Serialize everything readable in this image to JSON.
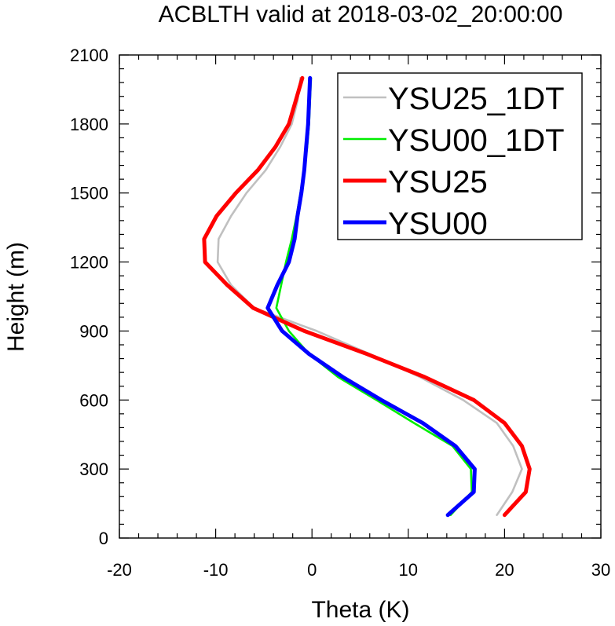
{
  "chart_data": {
    "type": "line",
    "title": "ACBLTH valid at 2018-03-02_20:00:00",
    "xlabel": "Theta (K)",
    "ylabel": "Height (m)",
    "xlim": [
      -20,
      30
    ],
    "ylim": [
      0,
      2100
    ],
    "xticks": [
      -20,
      -10,
      0,
      10,
      20,
      30
    ],
    "yticks": [
      0,
      300,
      600,
      900,
      1200,
      1500,
      1800,
      2100
    ],
    "x_tick_labels": [
      "-20",
      "-10",
      "0",
      "10",
      "20",
      "30"
    ],
    "y_tick_labels": [
      "0",
      "300",
      "600",
      "900",
      "1200",
      "1500",
      "1800",
      "2100"
    ],
    "grid": false,
    "legend_position": "top-right",
    "series": [
      {
        "name": "YSU25_1DT",
        "color": "#c0c0c0",
        "line_style": "thin",
        "points": [
          [
            19.2,
            100
          ],
          [
            20.8,
            200
          ],
          [
            21.8,
            300
          ],
          [
            20.9,
            400
          ],
          [
            19.2,
            500
          ],
          [
            15.7,
            600
          ],
          [
            11.2,
            700
          ],
          [
            6.0,
            800
          ],
          [
            0.5,
            900
          ],
          [
            -6.0,
            1000
          ],
          [
            -8.4,
            1100
          ],
          [
            -9.8,
            1200
          ],
          [
            -9.7,
            1300
          ],
          [
            -8.4,
            1400
          ],
          [
            -6.8,
            1500
          ],
          [
            -4.8,
            1600
          ],
          [
            -3.3,
            1700
          ],
          [
            -2.1,
            1800
          ],
          [
            -1.5,
            1900
          ],
          [
            -1.2,
            2000
          ]
        ]
      },
      {
        "name": "YSU00_1DT",
        "color": "#00ee00",
        "line_style": "thin",
        "points": [
          [
            14.4,
            100
          ],
          [
            16.6,
            200
          ],
          [
            16.5,
            300
          ],
          [
            14.6,
            400
          ],
          [
            10.6,
            500
          ],
          [
            6.7,
            600
          ],
          [
            2.7,
            700
          ],
          [
            -0.3,
            800
          ],
          [
            -2.4,
            900
          ],
          [
            -3.7,
            1000
          ],
          [
            -3.2,
            1100
          ],
          [
            -2.7,
            1200
          ],
          [
            -2.1,
            1300
          ],
          [
            -1.6,
            1400
          ],
          [
            -1.2,
            1500
          ],
          [
            -0.8,
            1600
          ],
          [
            -0.5,
            1700
          ],
          [
            -0.3,
            1800
          ],
          [
            -0.2,
            1900
          ],
          [
            -0.1,
            2000
          ]
        ]
      },
      {
        "name": "YSU25",
        "color": "#ff0000",
        "line_style": "thick",
        "points": [
          [
            20.0,
            100
          ],
          [
            22.2,
            200
          ],
          [
            22.6,
            300
          ],
          [
            21.8,
            400
          ],
          [
            20.0,
            500
          ],
          [
            16.8,
            600
          ],
          [
            11.7,
            700
          ],
          [
            5.7,
            800
          ],
          [
            -0.8,
            900
          ],
          [
            -6.1,
            1000
          ],
          [
            -8.8,
            1100
          ],
          [
            -11.1,
            1200
          ],
          [
            -11.2,
            1300
          ],
          [
            -9.9,
            1400
          ],
          [
            -7.9,
            1500
          ],
          [
            -5.6,
            1600
          ],
          [
            -3.8,
            1700
          ],
          [
            -2.4,
            1800
          ],
          [
            -1.7,
            1900
          ],
          [
            -1.0,
            2000
          ]
        ]
      },
      {
        "name": "YSU00",
        "color": "#0000ff",
        "line_style": "thick",
        "points": [
          [
            14.1,
            100
          ],
          [
            16.8,
            200
          ],
          [
            16.9,
            300
          ],
          [
            14.9,
            400
          ],
          [
            11.5,
            500
          ],
          [
            7.2,
            600
          ],
          [
            3.2,
            700
          ],
          [
            -0.3,
            800
          ],
          [
            -3.1,
            900
          ],
          [
            -4.6,
            1000
          ],
          [
            -3.6,
            1100
          ],
          [
            -2.4,
            1200
          ],
          [
            -1.8,
            1300
          ],
          [
            -1.5,
            1400
          ],
          [
            -1.1,
            1500
          ],
          [
            -0.8,
            1600
          ],
          [
            -0.6,
            1700
          ],
          [
            -0.4,
            1800
          ],
          [
            -0.3,
            1900
          ],
          [
            -0.2,
            2000
          ]
        ]
      }
    ]
  }
}
